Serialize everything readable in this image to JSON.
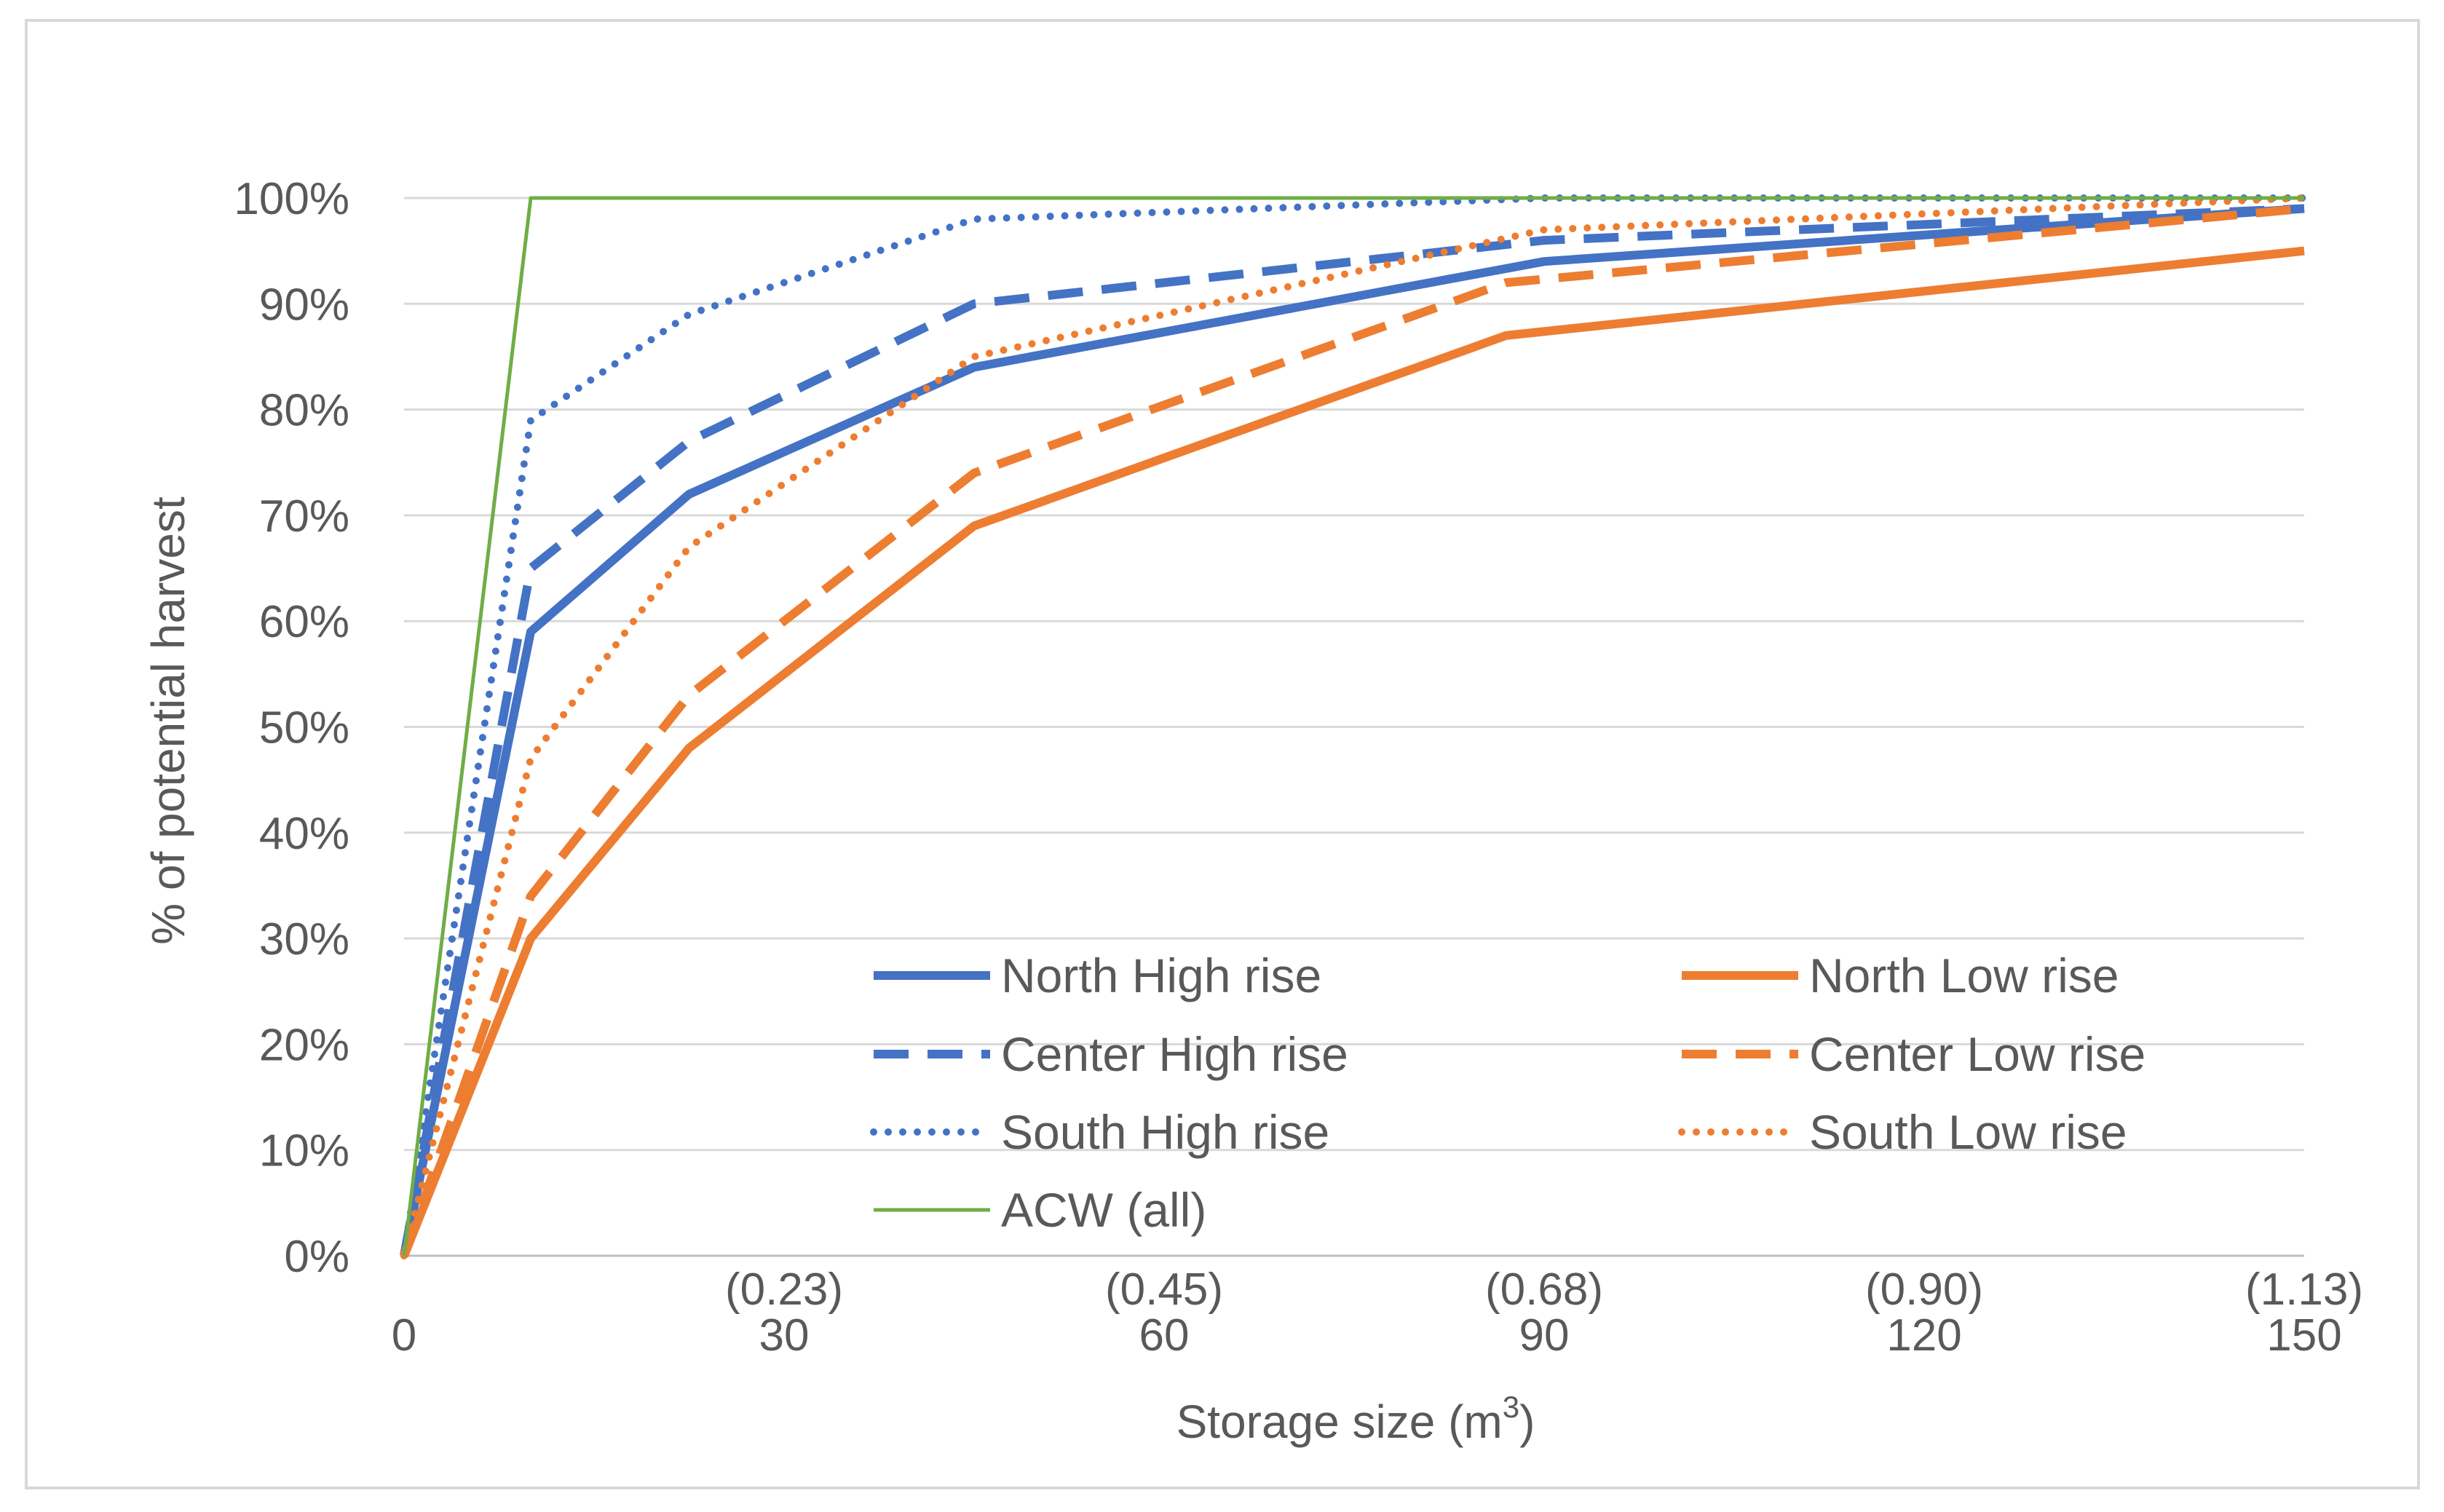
{
  "chart_data": {
    "type": "line",
    "title": "",
    "xlabel": "Storage size (m",
    "xlabel_sup": "3",
    "xlabel_close": ")",
    "ylabel": "% of potential harvest",
    "xlim": [
      0,
      150
    ],
    "ylim": [
      0,
      100
    ],
    "x_ticks": [
      {
        "value": 0,
        "label": "0",
        "sub": ""
      },
      {
        "value": 30,
        "label": "30",
        "sub": "(0.23)"
      },
      {
        "value": 60,
        "label": "60",
        "sub": "(0.45)"
      },
      {
        "value": 90,
        "label": "90",
        "sub": "(0.68)"
      },
      {
        "value": 120,
        "label": "120",
        "sub": "(0.90)"
      },
      {
        "value": 150,
        "label": "150",
        "sub": "(1.13)"
      }
    ],
    "y_ticks": [
      {
        "value": 0,
        "label": "0%"
      },
      {
        "value": 10,
        "label": "10%"
      },
      {
        "value": 20,
        "label": "20%"
      },
      {
        "value": 30,
        "label": "30%"
      },
      {
        "value": 40,
        "label": "40%"
      },
      {
        "value": 50,
        "label": "50%"
      },
      {
        "value": 60,
        "label": "60%"
      },
      {
        "value": 70,
        "label": "70%"
      },
      {
        "value": 80,
        "label": "80%"
      },
      {
        "value": 90,
        "label": "90%"
      },
      {
        "value": 100,
        "label": "100%"
      }
    ],
    "grid": "horizontal",
    "legend_position": "inside-bottom",
    "series": [
      {
        "name": "North High rise",
        "color": "#4472c4",
        "style": "solid",
        "x": [
          0,
          10,
          22.5,
          45,
          90,
          150
        ],
        "y": [
          0,
          59,
          72,
          84,
          94,
          99
        ]
      },
      {
        "name": "North Low rise",
        "color": "#ed7d31",
        "style": "solid",
        "x": [
          0,
          10,
          22.5,
          45,
          87,
          150
        ],
        "y": [
          0,
          30,
          48,
          69,
          87,
          95
        ]
      },
      {
        "name": "Center High rise",
        "color": "#4472c4",
        "style": "dashed",
        "x": [
          0,
          10,
          22.5,
          45,
          90,
          150
        ],
        "y": [
          0,
          65,
          77,
          90,
          96,
          99
        ]
      },
      {
        "name": "Center Low rise",
        "color": "#ed7d31",
        "style": "dashed",
        "x": [
          0,
          10,
          22.5,
          45,
          87,
          150
        ],
        "y": [
          0,
          34,
          53,
          74,
          92,
          99
        ]
      },
      {
        "name": "South High rise",
        "color": "#4472c4",
        "style": "dotted",
        "x": [
          0,
          10,
          22.5,
          45,
          90,
          150
        ],
        "y": [
          0,
          79,
          89,
          98,
          100,
          100
        ]
      },
      {
        "name": "South Low rise",
        "color": "#ed7d31",
        "style": "dotted",
        "x": [
          0,
          10,
          22.5,
          45,
          90,
          150
        ],
        "y": [
          0,
          47,
          67,
          85,
          97,
          100
        ]
      },
      {
        "name": "ACW (all)",
        "color": "#70ad47",
        "style": "thin",
        "x": [
          0,
          10,
          150
        ],
        "y": [
          0,
          100,
          100
        ]
      }
    ]
  }
}
